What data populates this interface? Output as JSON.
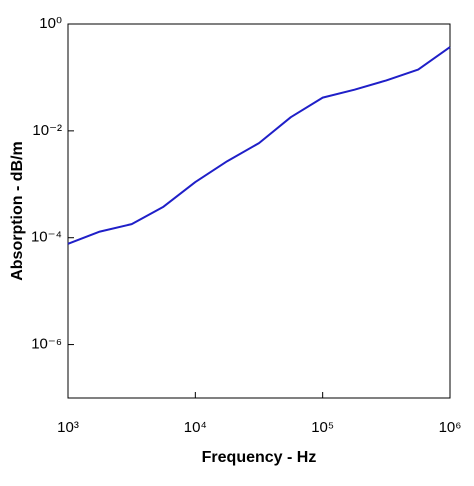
{
  "chart_data": {
    "type": "line",
    "x_label": "Frequency - Hz",
    "y_label": "Absorption - dB/m",
    "x": [
      1000,
      1778,
      3162,
      5623,
      10000,
      17783,
      31623,
      56234,
      100000,
      177828,
      316228,
      562341,
      1000000
    ],
    "series": [
      {
        "name": "Absorption",
        "color": "#1f1fc8",
        "values": [
          7.7e-05,
          0.00013,
          0.00018,
          0.00038,
          0.0011,
          0.0027,
          0.0059,
          0.018,
          0.042,
          0.059,
          0.088,
          0.14,
          0.37
        ]
      }
    ],
    "x_log": true,
    "y_log": true,
    "xlim": [
      1000,
      1000000
    ],
    "ylim": [
      1e-07,
      1
    ],
    "xticks": [
      {
        "value": 1000,
        "label": "10³"
      },
      {
        "value": 10000,
        "label": "10⁴"
      },
      {
        "value": 100000,
        "label": "10⁵"
      },
      {
        "value": 1000000,
        "label": "10⁶"
      }
    ],
    "yticks": [
      {
        "value": 1,
        "label": "10⁰"
      },
      {
        "value": 0.01,
        "label": "10⁻²"
      },
      {
        "value": 0.0001,
        "label": "10⁻⁴"
      },
      {
        "value": 1e-06,
        "label": "10⁻⁶"
      }
    ],
    "grid": false
  }
}
